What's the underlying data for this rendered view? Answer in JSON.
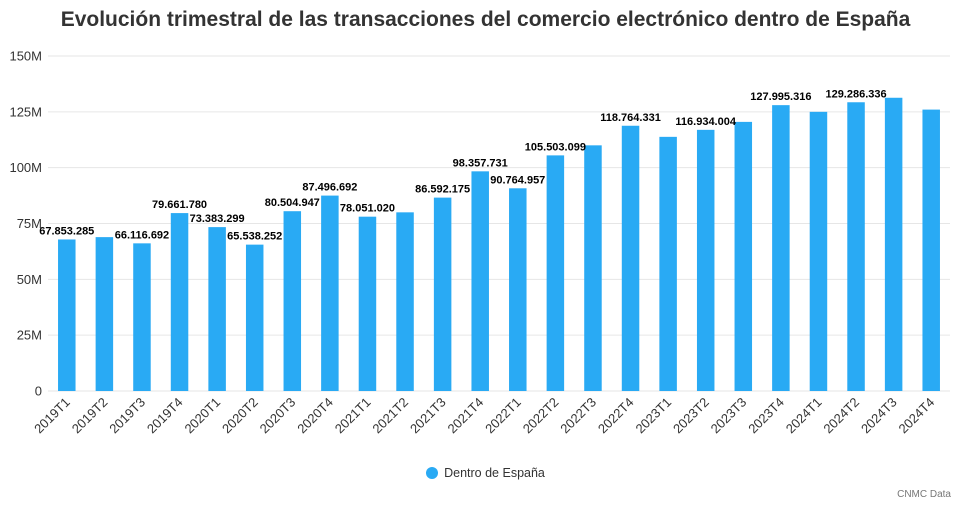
{
  "chart_data": {
    "type": "bar",
    "title": "Evolución trimestral de las transacciones del comercio electrónico dentro de España",
    "xlabel": "",
    "ylabel": "",
    "ylim": [
      0,
      150000000
    ],
    "yticks": [
      0,
      25000000,
      50000000,
      75000000,
      100000000,
      125000000,
      150000000
    ],
    "ytick_labels": [
      "0",
      "25M",
      "50M",
      "75M",
      "100M",
      "125M",
      "150M"
    ],
    "grid": true,
    "legend_position": "bottom",
    "categories": [
      "2019T1",
      "2019T2",
      "2019T3",
      "2019T4",
      "2020T1",
      "2020T2",
      "2020T3",
      "2020T4",
      "2021T1",
      "2021T2",
      "2021T3",
      "2021T4",
      "2022T1",
      "2022T2",
      "2022T3",
      "2022T4",
      "2023T1",
      "2023T2",
      "2023T3",
      "2023T4",
      "2024T1",
      "2024T2",
      "2024T3",
      "2024T4"
    ],
    "series": [
      {
        "name": "Dentro de España",
        "color": "#29aaf4",
        "values": [
          67853285,
          68900000,
          66116692,
          79661780,
          73383299,
          65538252,
          80504947,
          87496692,
          78051020,
          80000000,
          86592175,
          98357731,
          90764957,
          105503099,
          110000000,
          118764331,
          113800000,
          116934004,
          120500000,
          127995316,
          125000000,
          129286336,
          131300000,
          126000000
        ],
        "data_labels": [
          "67.853.285",
          "",
          "66.116.692",
          "79.661.780",
          "73.383.299",
          "65.538.252",
          "80.504.947",
          "87.496.692",
          "78.051.020",
          "",
          "86.592.175",
          "98.357.731",
          "90.764.957",
          "105.503.099",
          "",
          "118.764.331",
          "",
          "116.934.004",
          "",
          "127.995.316",
          "",
          "129.286.336",
          "",
          ""
        ]
      }
    ]
  },
  "legend": {
    "label": "Dentro de España"
  },
  "source": "CNMC Data"
}
